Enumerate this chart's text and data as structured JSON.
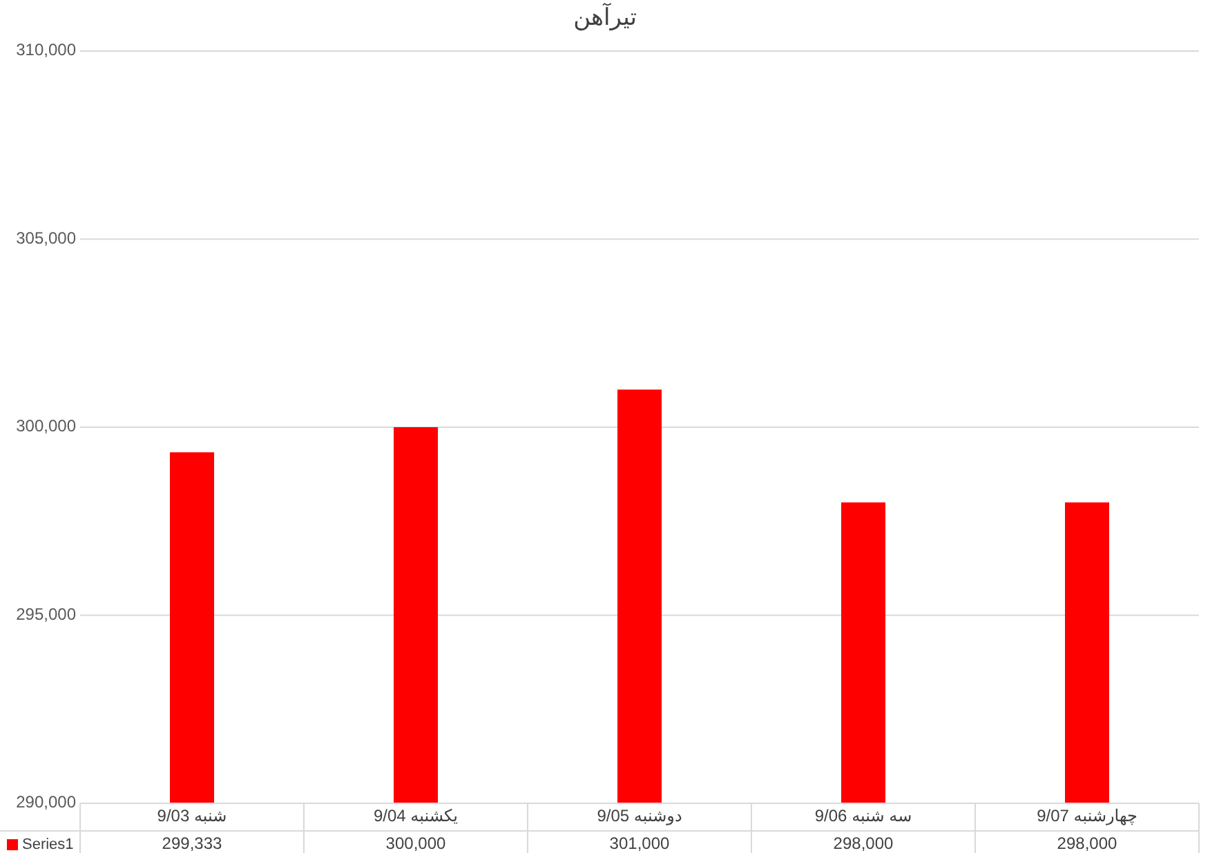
{
  "chart_data": {
    "type": "bar",
    "title": "تیرآهن",
    "categories": [
      "شنبه 9/03",
      "یکشنبه 9/04",
      "دوشنبه 9/05",
      "سه شنبه 9/06",
      "چهارشنبه 9/07"
    ],
    "series": [
      {
        "name": "Series1",
        "color": "#ff0000",
        "values": [
          299333,
          300000,
          301000,
          298000,
          298000
        ],
        "value_labels": [
          "299,333",
          "300,000",
          "301,000",
          "298,000",
          "298,000"
        ]
      }
    ],
    "ylim": [
      290000,
      310000
    ],
    "yticks": [
      {
        "value": 290000,
        "label": "290,000"
      },
      {
        "value": 295000,
        "label": "295,000"
      },
      {
        "value": 300000,
        "label": "300,000"
      },
      {
        "value": 305000,
        "label": "305,000"
      },
      {
        "value": 310000,
        "label": "310,000"
      }
    ],
    "grid": "y",
    "legend": "bottom left"
  }
}
